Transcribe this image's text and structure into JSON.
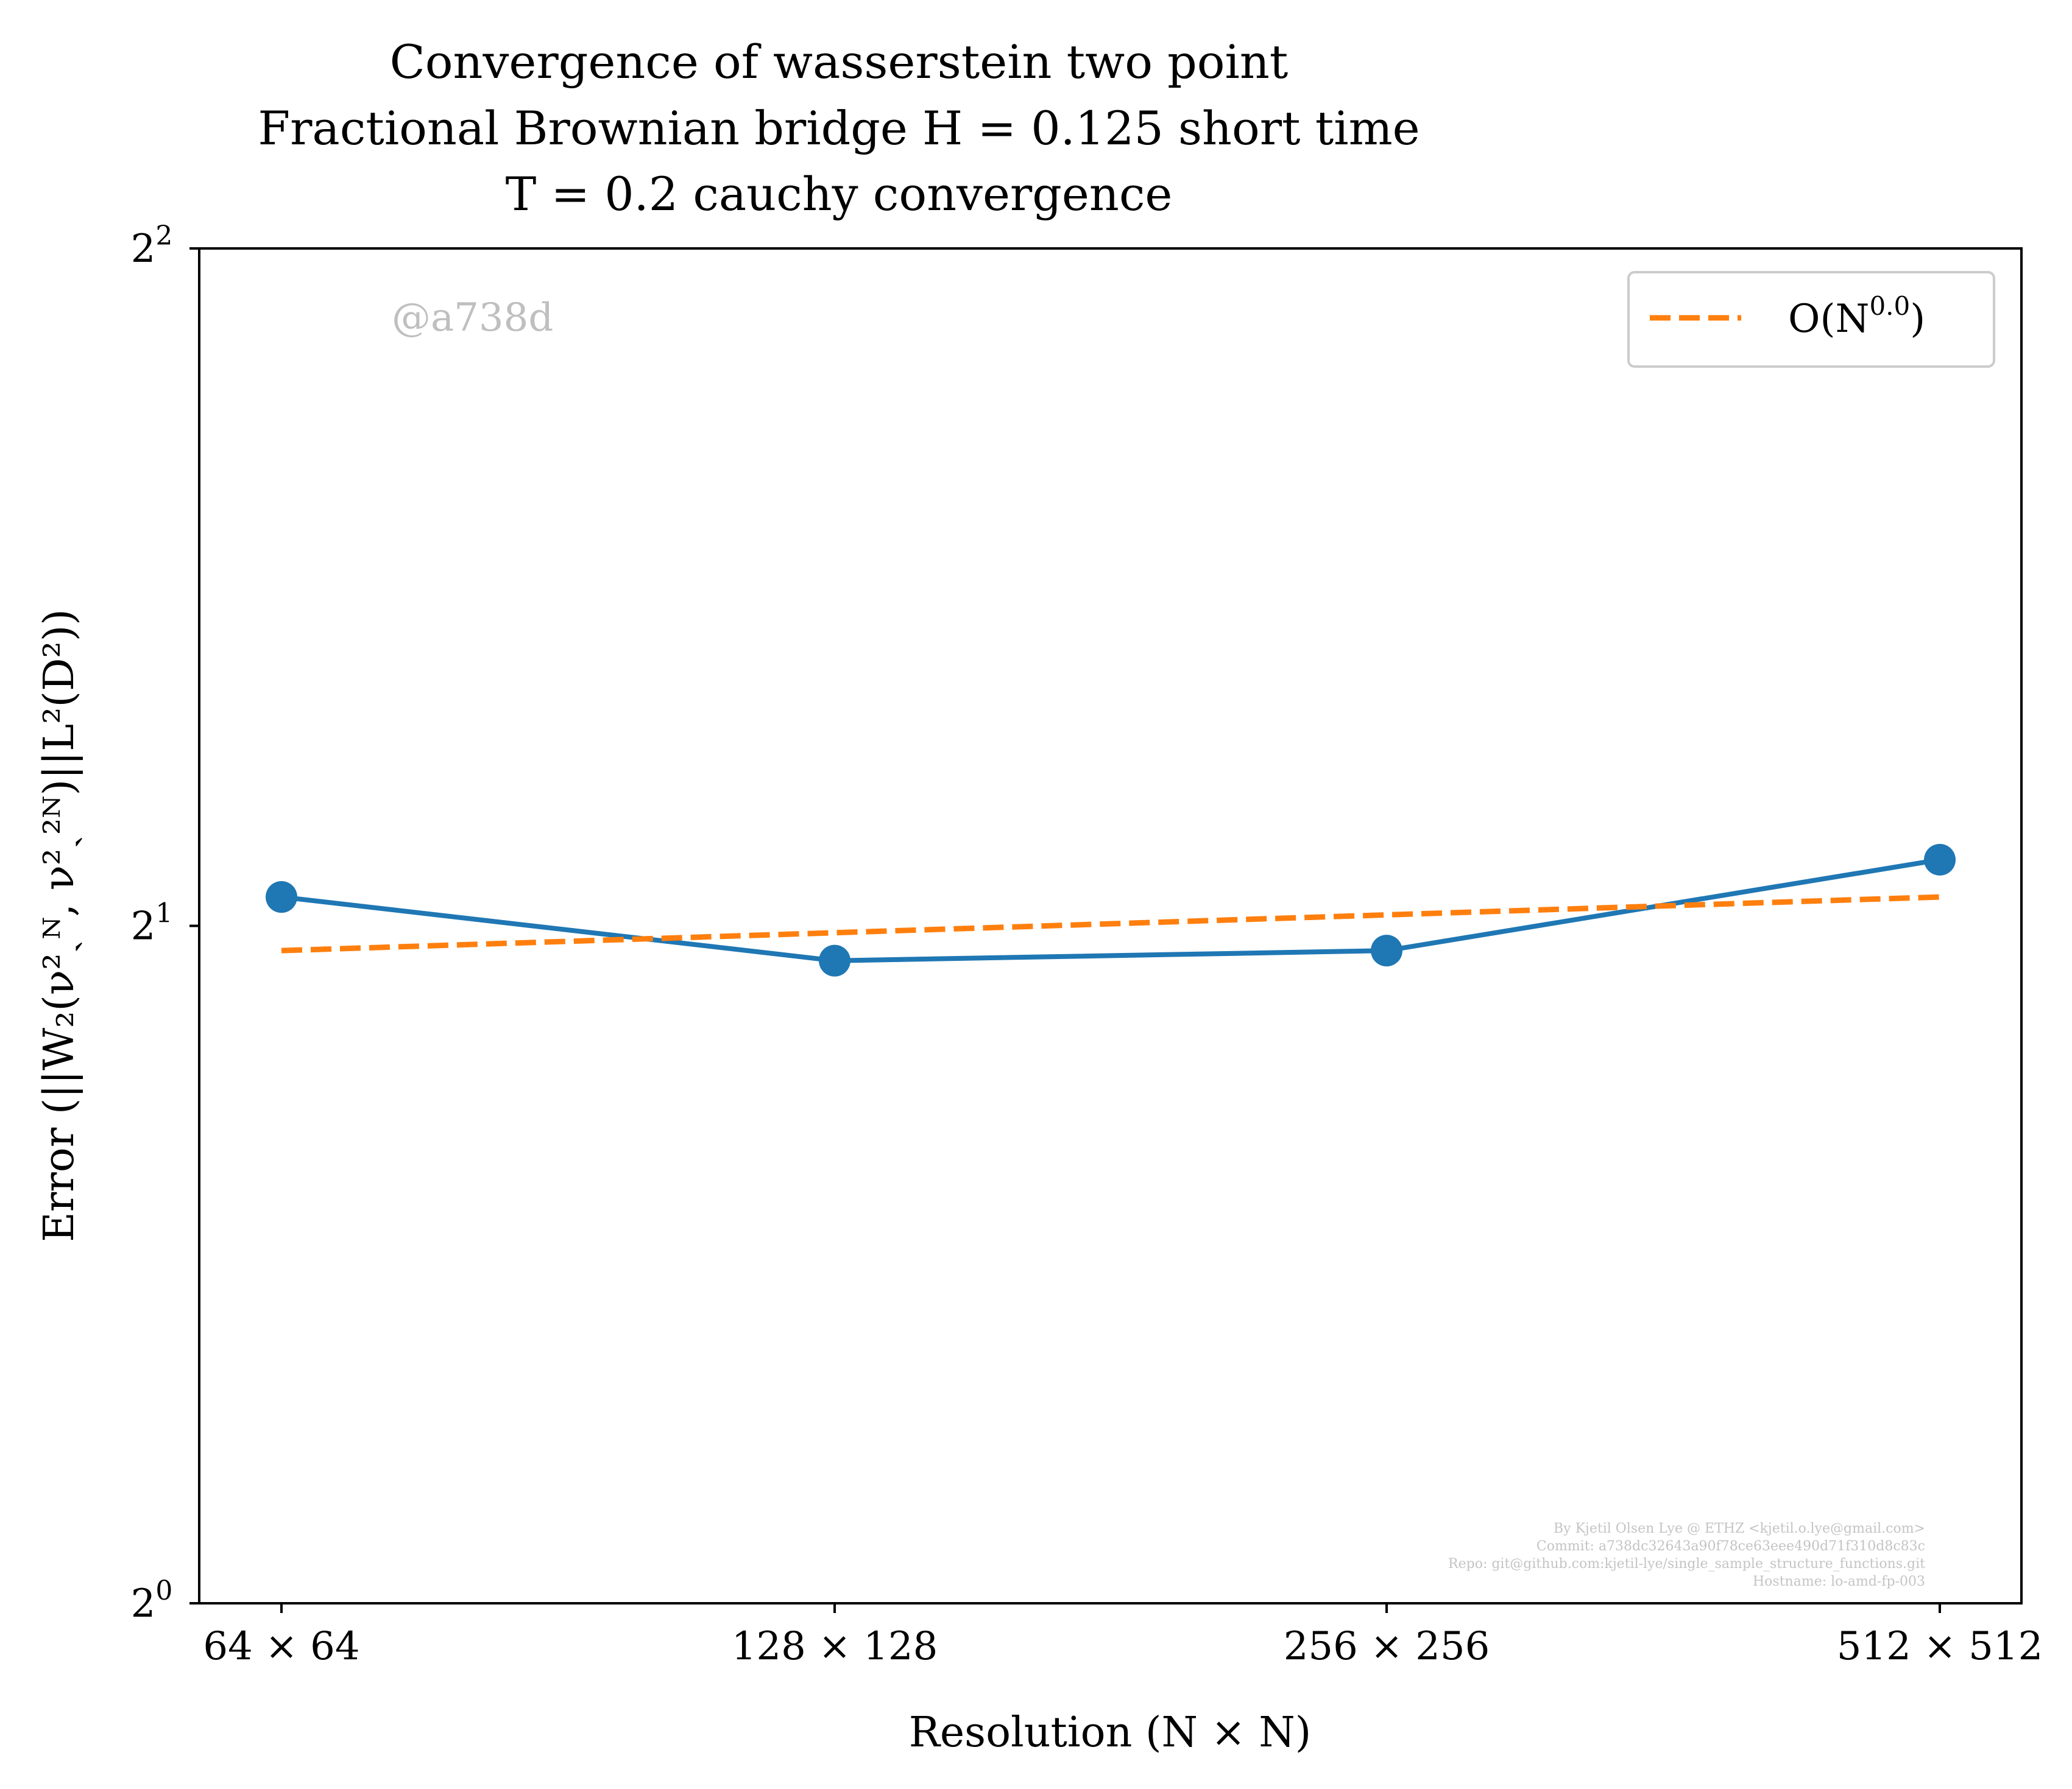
{
  "chart_data": {
    "type": "line",
    "title_lines": [
      "Convergence of wasserstein two point",
      "Fractional Brownian bridge H = 0.125 short time",
      "T = 0.2 cauchy convergence"
    ],
    "xlabel": "Resolution (N × N)",
    "ylabel": "Error (||W₂(ν²ˏᴺ, ν²ˏ²ᴺ)||L²(D²))",
    "categories": [
      "64 × 64",
      "128 × 128",
      "256 × 256",
      "512 × 512"
    ],
    "x": [
      64,
      128,
      256,
      512
    ],
    "y_scale": "log2",
    "ylim": [
      1,
      4
    ],
    "yticks": [
      {
        "base": "2",
        "exp": "0",
        "value": 1
      },
      {
        "base": "2",
        "exp": "1",
        "value": 2
      },
      {
        "base": "2",
        "exp": "2",
        "value": 4
      }
    ],
    "grid": false,
    "legend_position": "top-right",
    "series": [
      {
        "name": "",
        "style": "solid-markers",
        "color": "#1f77b4",
        "values": [
          2.06,
          1.93,
          1.95,
          2.14
        ]
      },
      {
        "name": "O(N^0.0)",
        "style": "dashed",
        "color": "#ff7f0e",
        "values": [
          1.95,
          1.99,
          2.03,
          2.06
        ]
      }
    ],
    "legend": {
      "label_main": "O(N",
      "label_exp": "0.0",
      "label_close": ")"
    },
    "watermark": "@a738d",
    "credits": [
      "By Kjetil Olsen Lye @ ETHZ <kjetil.o.lye@gmail.com>",
      "Commit: a738dc32643a90f78ce63eee490d71f310d8c83c",
      "Repo: git@github.com:kjetil-lye/single_sample_structure_functions.git",
      "Hostname: lo-amd-fp-003"
    ]
  }
}
